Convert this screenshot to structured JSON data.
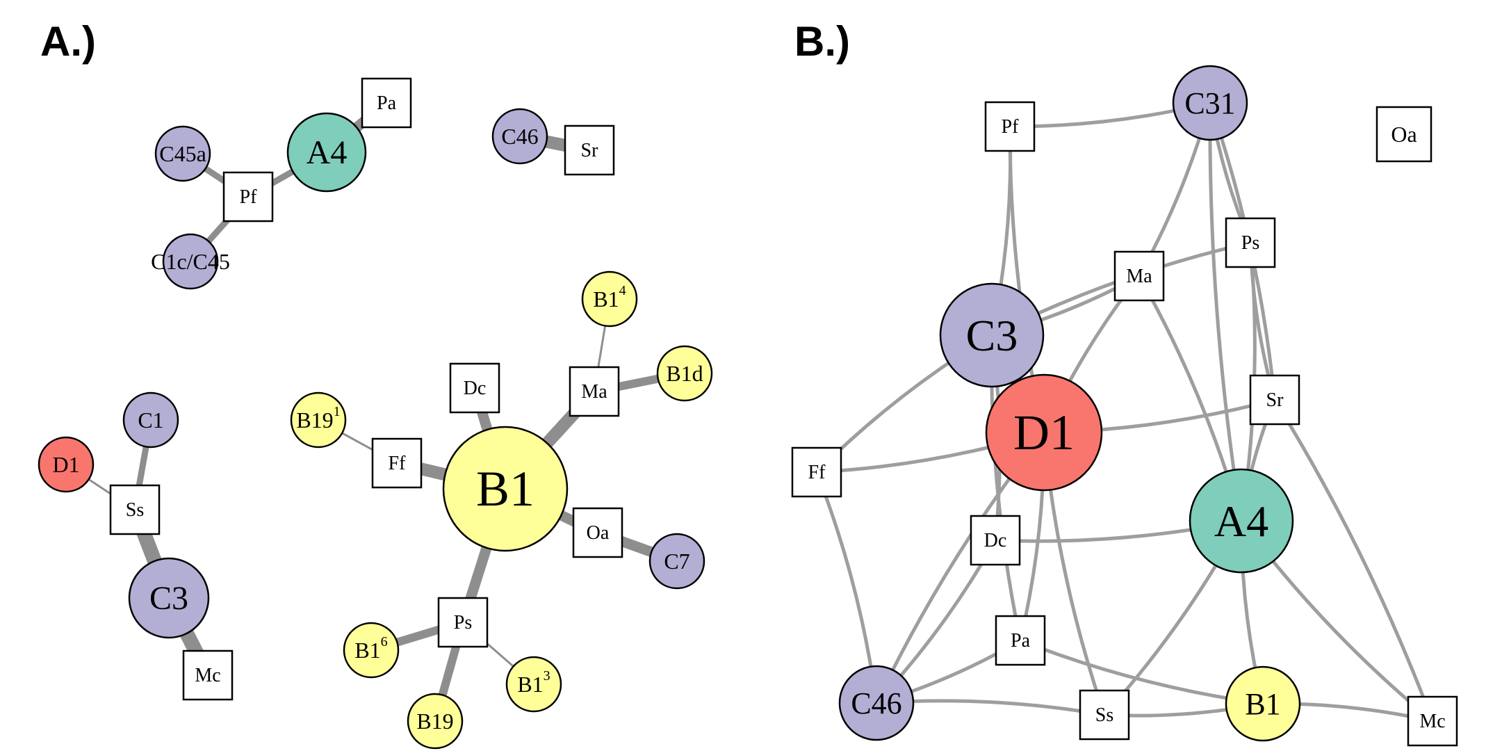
{
  "panels": {
    "a": {
      "label": "A.)"
    },
    "b": {
      "label": "B.)"
    }
  },
  "colors": {
    "D": "#f8766d",
    "A": "#7fcdbb",
    "B": "#ffff99",
    "C": "#b3aed3",
    "plant": "#ffffff",
    "edge_a": "#8e8e8e",
    "edge_b": "#9e9e9e"
  },
  "network_a": {
    "nodes": [
      {
        "id": "A4",
        "label": "A4",
        "shape": "circle",
        "group": "A"
      },
      {
        "id": "Pa",
        "label": "Pa",
        "shape": "square",
        "group": "plant"
      },
      {
        "id": "C45a",
        "label": "C45a",
        "shape": "circle",
        "group": "C"
      },
      {
        "id": "Pf",
        "label": "Pf",
        "shape": "square",
        "group": "plant"
      },
      {
        "id": "C1c/C45",
        "label": "C1c/C45",
        "shape": "circle",
        "group": "C"
      },
      {
        "id": "C46",
        "label": "C46",
        "shape": "circle",
        "group": "C"
      },
      {
        "id": "Sr",
        "label": "Sr",
        "shape": "square",
        "group": "plant"
      },
      {
        "id": "C1",
        "label": "C1",
        "shape": "circle",
        "group": "C"
      },
      {
        "id": "D1",
        "label": "D1",
        "shape": "circle",
        "group": "D"
      },
      {
        "id": "Ss",
        "label": "Ss",
        "shape": "square",
        "group": "plant"
      },
      {
        "id": "C3",
        "label": "C3",
        "shape": "circle",
        "group": "C"
      },
      {
        "id": "Mc",
        "label": "Mc",
        "shape": "square",
        "group": "plant"
      },
      {
        "id": "B1",
        "label": "B1",
        "shape": "circle",
        "group": "B"
      },
      {
        "id": "B1_4",
        "label": "B1",
        "sup": "4",
        "shape": "circle",
        "group": "B"
      },
      {
        "id": "Ma",
        "label": "Ma",
        "shape": "square",
        "group": "plant"
      },
      {
        "id": "B1d",
        "label": "B1d",
        "shape": "circle",
        "group": "B"
      },
      {
        "id": "Dc",
        "label": "Dc",
        "shape": "square",
        "group": "plant"
      },
      {
        "id": "B19_1",
        "label": "B19",
        "sup": "1",
        "shape": "circle",
        "group": "B"
      },
      {
        "id": "Ff",
        "label": "Ff",
        "shape": "square",
        "group": "plant"
      },
      {
        "id": "Oa",
        "label": "Oa",
        "shape": "square",
        "group": "plant"
      },
      {
        "id": "C7",
        "label": "C7",
        "shape": "circle",
        "group": "C"
      },
      {
        "id": "Ps",
        "label": "Ps",
        "shape": "square",
        "group": "plant"
      },
      {
        "id": "B1_6",
        "label": "B1",
        "sup": "6",
        "shape": "circle",
        "group": "B"
      },
      {
        "id": "B1_3",
        "label": "B1",
        "sup": "3",
        "shape": "circle",
        "group": "B"
      },
      {
        "id": "B19",
        "label": "B19",
        "shape": "circle",
        "group": "B"
      }
    ],
    "edges": [
      {
        "from": "A4",
        "to": "Pa",
        "weight": 5
      },
      {
        "from": "A4",
        "to": "Pf",
        "weight": 3
      },
      {
        "from": "C45a",
        "to": "Pf",
        "weight": 3
      },
      {
        "from": "C1c/C45",
        "to": "Pf",
        "weight": 3
      },
      {
        "from": "C46",
        "to": "Sr",
        "weight": 6
      },
      {
        "from": "C1",
        "to": "Ss",
        "weight": 3
      },
      {
        "from": "D1",
        "to": "Ss",
        "weight": 1
      },
      {
        "from": "Ss",
        "to": "C3",
        "weight": 7
      },
      {
        "from": "C3",
        "to": "Mc",
        "weight": 7
      },
      {
        "from": "B1",
        "to": "Dc",
        "weight": 5
      },
      {
        "from": "B1",
        "to": "Ma",
        "weight": 6
      },
      {
        "from": "B1",
        "to": "Ff",
        "weight": 6
      },
      {
        "from": "B1",
        "to": "Oa",
        "weight": 5
      },
      {
        "from": "B1",
        "to": "Ps",
        "weight": 5
      },
      {
        "from": "Ma",
        "to": "B1_4",
        "weight": 1
      },
      {
        "from": "Ma",
        "to": "B1d",
        "weight": 4
      },
      {
        "from": "Ff",
        "to": "B19_1",
        "weight": 1
      },
      {
        "from": "Oa",
        "to": "C7",
        "weight": 5
      },
      {
        "from": "Ps",
        "to": "B1_6",
        "weight": 4
      },
      {
        "from": "Ps",
        "to": "B1_3",
        "weight": 1
      },
      {
        "from": "Ps",
        "to": "B19",
        "weight": 4
      }
    ]
  },
  "network_b": {
    "nodes": [
      {
        "id": "Pf",
        "label": "Pf",
        "shape": "square",
        "group": "plant"
      },
      {
        "id": "C31",
        "label": "C31",
        "shape": "circle",
        "group": "C"
      },
      {
        "id": "Oa",
        "label": "Oa",
        "shape": "square",
        "group": "plant"
      },
      {
        "id": "Ps",
        "label": "Ps",
        "shape": "square",
        "group": "plant"
      },
      {
        "id": "Ma",
        "label": "Ma",
        "shape": "square",
        "group": "plant"
      },
      {
        "id": "C3",
        "label": "C3",
        "shape": "circle",
        "group": "C"
      },
      {
        "id": "Sr",
        "label": "Sr",
        "shape": "square",
        "group": "plant"
      },
      {
        "id": "D1",
        "label": "D1",
        "shape": "circle",
        "group": "D"
      },
      {
        "id": "Ff",
        "label": "Ff",
        "shape": "square",
        "group": "plant"
      },
      {
        "id": "A4",
        "label": "A4",
        "shape": "circle",
        "group": "A"
      },
      {
        "id": "Dc",
        "label": "Dc",
        "shape": "square",
        "group": "plant"
      },
      {
        "id": "Pa",
        "label": "Pa",
        "shape": "square",
        "group": "plant"
      },
      {
        "id": "C46",
        "label": "C46",
        "shape": "circle",
        "group": "C"
      },
      {
        "id": "Ss",
        "label": "Ss",
        "shape": "square",
        "group": "plant"
      },
      {
        "id": "B1",
        "label": "B1",
        "shape": "circle",
        "group": "B"
      },
      {
        "id": "Mc",
        "label": "Mc",
        "shape": "square",
        "group": "plant"
      }
    ],
    "edges": [
      {
        "from": "Pf",
        "to": "C31"
      },
      {
        "from": "Pf",
        "to": "C3"
      },
      {
        "from": "Pf",
        "to": "D1"
      },
      {
        "from": "C31",
        "to": "Ma"
      },
      {
        "from": "C31",
        "to": "Ps"
      },
      {
        "from": "C31",
        "to": "Sr"
      },
      {
        "from": "C31",
        "to": "A4"
      },
      {
        "from": "Ma",
        "to": "C3"
      },
      {
        "from": "Ma",
        "to": "D1"
      },
      {
        "from": "Ma",
        "to": "A4"
      },
      {
        "from": "Ps",
        "to": "C3"
      },
      {
        "from": "Ps",
        "to": "A4"
      },
      {
        "from": "Ps",
        "to": "Sr"
      },
      {
        "from": "Sr",
        "to": "D1"
      },
      {
        "from": "Sr",
        "to": "A4"
      },
      {
        "from": "Sr",
        "to": "Mc"
      },
      {
        "from": "C3",
        "to": "Ff"
      },
      {
        "from": "C3",
        "to": "Dc"
      },
      {
        "from": "C3",
        "to": "Pa"
      },
      {
        "from": "D1",
        "to": "Ff"
      },
      {
        "from": "D1",
        "to": "Ss"
      },
      {
        "from": "D1",
        "to": "Pa"
      },
      {
        "from": "D1",
        "to": "C46"
      },
      {
        "from": "Ff",
        "to": "C46"
      },
      {
        "from": "Dc",
        "to": "A4"
      },
      {
        "from": "Dc",
        "to": "C46"
      },
      {
        "from": "A4",
        "to": "B1"
      },
      {
        "from": "A4",
        "to": "Ss"
      },
      {
        "from": "A4",
        "to": "Mc"
      },
      {
        "from": "Pa",
        "to": "C46"
      },
      {
        "from": "Pa",
        "to": "B1"
      },
      {
        "from": "C46",
        "to": "Ss"
      },
      {
        "from": "Ss",
        "to": "B1"
      },
      {
        "from": "B1",
        "to": "Mc"
      }
    ]
  }
}
